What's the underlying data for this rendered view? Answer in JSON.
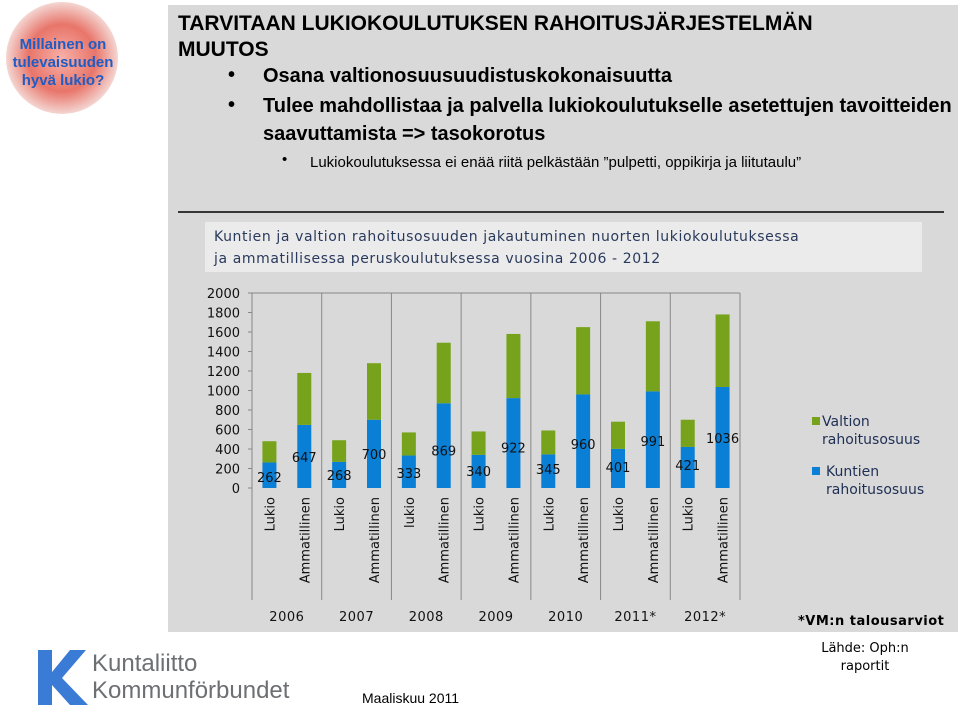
{
  "slide": {
    "badge": "Millainen on tulevaisuuden hyvä lukio?",
    "title_lines": [
      "TARVITAAN LUKIOKOULUTUKSEN RAHOITUSJÄRJESTELMÄN",
      "MUUTOS"
    ],
    "bullets": [
      "Osana valtionosuusuudistuskokonaisuutta",
      "Tulee mahdollistaa ja palvella lukiokoulutukselle asetettujen tavoitteiden saavuttamista => tasokorotus"
    ],
    "sub_bullet": "Lukiokoulutuksessa ei enää riitä pelkästään ”pulpetti, oppikirja ja liitutaulu”",
    "footnote": "*VM:n talousarviot",
    "source": "Lähde: Oph:n raportit",
    "date": "Maaliskuu 2011",
    "logo_lines": [
      "Kuntaliitto",
      "Kommunförbundet"
    ]
  },
  "chart_data": {
    "type": "stacked_bar",
    "title_lines": [
      "Kuntien ja valtion rahoitusosuuden jakautuminen nuorten lukiokoulutuksessa",
      "ja ammatillisessa peruskoulutuksessa vuosina 2006 - 2012"
    ],
    "categories": [
      "Lukio",
      "Ammatillinen",
      "Lukio",
      "Ammatillinen",
      "lukio",
      "Ammatillinen",
      "Lukio",
      "Ammatillinen",
      "Lukio",
      "Ammatillinen",
      "Lukio",
      "Ammatillinen",
      "Lukio",
      "Ammatillinen"
    ],
    "groups": [
      "2006",
      "2007",
      "2008",
      "2009",
      "2010",
      "2011*",
      "2012*"
    ],
    "series": [
      {
        "name": "Kuntien rahoitusosuus",
        "color": "#0a7fd6",
        "values": [
          262,
          647,
          268,
          700,
          333,
          869,
          340,
          922,
          345,
          960,
          401,
          991,
          421,
          1036
        ]
      },
      {
        "name": "Valtion rahoitusosuus",
        "color": "#76a31b",
        "values": [
          218,
          533,
          222,
          580,
          237,
          621,
          240,
          658,
          245,
          690,
          279,
          719,
          279,
          744
        ]
      }
    ],
    "labeled_series": 0,
    "ylim": [
      0,
      2000
    ],
    "yticks": [
      0,
      200,
      400,
      600,
      800,
      1000,
      1200,
      1400,
      1600,
      1800,
      2000
    ]
  }
}
